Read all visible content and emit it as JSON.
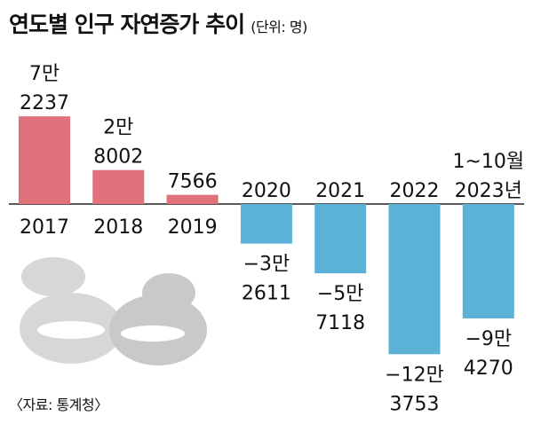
{
  "header": {
    "title": "연도별 인구 자연증가 추이",
    "unit": "(단위: 명)"
  },
  "footer": {
    "source": "〈자료: 통계청〉"
  },
  "colors": {
    "positive": "#e0707a",
    "negative": "#5cb2d6",
    "baseline": "#222222",
    "illustration": "#d7d7d7",
    "illustration_dark": "#c9c9c9"
  },
  "illustration": {
    "icon": "baby-bed-icon"
  },
  "chart_data": {
    "type": "bar",
    "title": "연도별 인구 자연증가 추이",
    "unit": "(단위: 명)",
    "categories": [
      "2017",
      "2018",
      "2019",
      "2020",
      "2021",
      "2022",
      "1~10월 2023년"
    ],
    "category_labels": [
      [
        "2017"
      ],
      [
        "2018"
      ],
      [
        "2019"
      ],
      [
        "2020"
      ],
      [
        "2021"
      ],
      [
        "2022"
      ],
      [
        "1~10월",
        "2023년"
      ]
    ],
    "values": [
      72237,
      28002,
      7566,
      -32611,
      -57118,
      -123753,
      -94270
    ],
    "value_labels": [
      [
        "7만",
        "2237"
      ],
      [
        "2만",
        "8002"
      ],
      [
        "7566"
      ],
      [
        "−3만",
        "2611"
      ],
      [
        "−5만",
        "7118"
      ],
      [
        "−12만",
        "3753"
      ],
      [
        "−9만",
        "4270"
      ]
    ],
    "xlabel": "",
    "ylabel": "",
    "grid": false,
    "legend": "none"
  }
}
